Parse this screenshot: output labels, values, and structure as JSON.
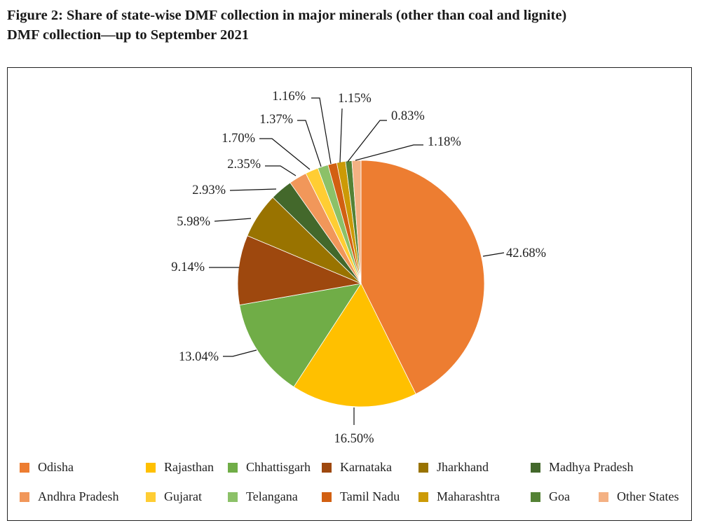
{
  "title_line1": "Figure 2: Share of state-wise DMF collection in major minerals (other than coal and lignite)",
  "title_line2": "DMF collection—up to September 2021",
  "chart_data": {
    "type": "pie",
    "title": "Share of state-wise DMF collection in major minerals (other than coal and lignite) DMF collection—up to September 2021",
    "start": "top, clockwise",
    "legend_position": "bottom",
    "slices": [
      {
        "name": "Odisha",
        "value": 42.68,
        "label": "42.68%",
        "color": "#ED7D31"
      },
      {
        "name": "Rajasthan",
        "value": 16.5,
        "label": "16.50%",
        "color": "#FFC000"
      },
      {
        "name": "Chhattisgarh",
        "value": 13.04,
        "label": "13.04%",
        "color": "#70AD47"
      },
      {
        "name": "Karnataka",
        "value": 9.14,
        "label": "9.14%",
        "color": "#9E480E"
      },
      {
        "name": "Jharkhand",
        "value": 5.98,
        "label": "5.98%",
        "color": "#997300"
      },
      {
        "name": "Madhya Pradesh",
        "value": 2.93,
        "label": "2.93%",
        "color": "#43682B"
      },
      {
        "name": "Andhra Pradesh",
        "value": 2.35,
        "label": "2.35%",
        "color": "#F1975A"
      },
      {
        "name": "Gujarat",
        "value": 1.7,
        "label": "1.70%",
        "color": "#FFCD33"
      },
      {
        "name": "Telangana",
        "value": 1.37,
        "label": "1.37%",
        "color": "#8CC168"
      },
      {
        "name": "Tamil Nadu",
        "value": 1.16,
        "label": "1.16%",
        "color": "#D26012"
      },
      {
        "name": "Maharashtra",
        "value": 1.15,
        "label": "1.15%",
        "color": "#CC9A06"
      },
      {
        "name": "Goa",
        "value": 0.83,
        "label": "0.83%",
        "color": "#548235"
      },
      {
        "name": "Other States",
        "value": 1.18,
        "label": "1.18%",
        "color": "#F4B183"
      }
    ]
  }
}
